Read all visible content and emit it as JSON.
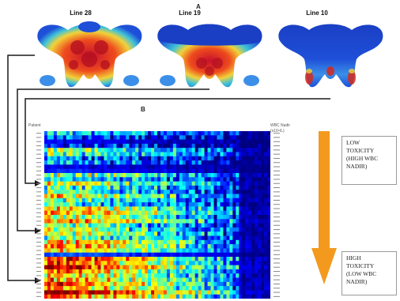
{
  "panel_a": {
    "label": "A",
    "lines": [
      "Line 28",
      "Line 19",
      "Line 10"
    ]
  },
  "panel_b": {
    "label": "B",
    "left_axis_label": "Patient",
    "right_axis_label": "WBC Nadir",
    "right_axis_unit": "(x10⁹/L)"
  },
  "toxicity": {
    "low": [
      "LOW",
      "TOXICITY",
      "(HIGH WBC",
      "NADIR)"
    ],
    "high": [
      "HIGH",
      "TOXICITY",
      "(LOW WBC",
      "NADIR)"
    ]
  },
  "colors": {
    "arrow": "#f39a1e",
    "connector": "#1a1a1a",
    "bone_base": "#1e4fd8",
    "dose_hot": "#d42a1e"
  }
}
